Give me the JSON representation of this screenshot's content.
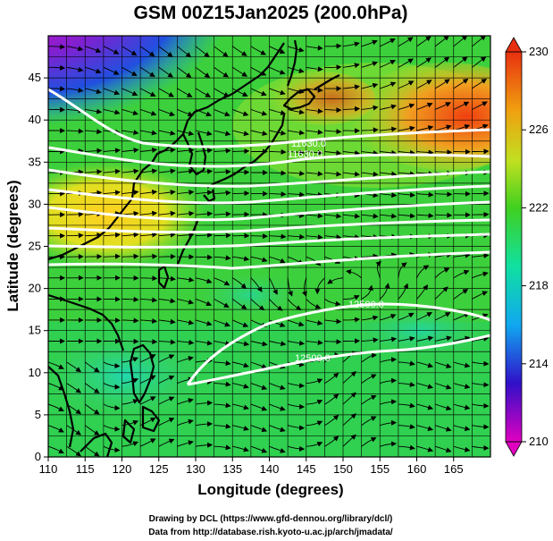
{
  "title": "GSM 00Z15Jan2025 (200.0hPa)",
  "xlabel": "Longitude (degrees)",
  "ylabel": "Latitude  (degrees)",
  "x_ticks": [
    "110",
    "115",
    "120",
    "125",
    "130",
    "135",
    "140",
    "145",
    "150",
    "155",
    "160",
    "165"
  ],
  "y_ticks": [
    "0",
    "5",
    "10",
    "15",
    "20",
    "25",
    "30",
    "35",
    "40",
    "45"
  ],
  "colorbar": {
    "ticks": [
      "230",
      "226",
      "222",
      "218",
      "214",
      "210"
    ],
    "min": 210,
    "max": 230,
    "colors": [
      "#e000c0",
      "#3010c8",
      "#10a8f0",
      "#10e0a0",
      "#40d020",
      "#c0e020",
      "#f0a010",
      "#e83010"
    ]
  },
  "contour_labels": [
    "11630.0",
    "11630.0",
    "12500.0",
    "12500.0"
  ],
  "credits": {
    "line1": "Drawing by DCL (https://www.gfd-dennou.org/library/dcl/)",
    "line2": "Data from http://database.rish.kyoto-u.ac.jp/arch/jmadata/"
  },
  "chart_data": {
    "type": "heatmap",
    "title": "GSM 00Z15Jan2025 (200.0hPa)",
    "xlabel": "Longitude (degrees)",
    "ylabel": "Latitude  (degrees)",
    "xlim": [
      110,
      170
    ],
    "ylim": [
      0,
      50
    ],
    "color_range": [
      210,
      230
    ],
    "contours": [
      {
        "label": "11630.0",
        "lat": 40
      },
      {
        "label": "12500.0",
        "lat": 17
      }
    ],
    "grid": "on"
  }
}
